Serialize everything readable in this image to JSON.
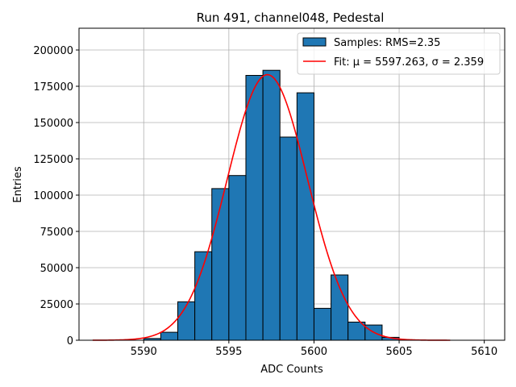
{
  "chart_data": {
    "type": "bar",
    "title": "Run 491, channel048, Pedestal",
    "xlabel": "ADC Counts",
    "ylabel": "Entries",
    "xlim": [
      5586.2,
      5611.2
    ],
    "ylim": [
      0,
      215000
    ],
    "x_ticks": [
      5590,
      5595,
      5600,
      5605,
      5610
    ],
    "y_ticks": [
      0,
      25000,
      50000,
      75000,
      100000,
      125000,
      150000,
      175000,
      200000
    ],
    "grid": true,
    "legend_position": "top-right",
    "series": [
      {
        "name": "Samples: RMS=2.35",
        "kind": "histogram",
        "color": "#1f77b4",
        "edgecolor": "#000000",
        "bin_width": 1,
        "bins": [
          {
            "x": 5590,
            "count": 1200
          },
          {
            "x": 5591,
            "count": 5500
          },
          {
            "x": 5592,
            "count": 26500
          },
          {
            "x": 5593,
            "count": 61000
          },
          {
            "x": 5594,
            "count": 104500
          },
          {
            "x": 5595,
            "count": 113500
          },
          {
            "x": 5596,
            "count": 182500
          },
          {
            "x": 5597,
            "count": 186000
          },
          {
            "x": 5598,
            "count": 140000
          },
          {
            "x": 5599,
            "count": 170500
          },
          {
            "x": 5600,
            "count": 22000
          },
          {
            "x": 5601,
            "count": 45000
          },
          {
            "x": 5602,
            "count": 12500
          },
          {
            "x": 5603,
            "count": 10500
          },
          {
            "x": 5604,
            "count": 2000
          }
        ]
      },
      {
        "name": "Fit: μ = 5597.263, σ = 2.359",
        "kind": "gaussian-fit",
        "color": "#ff0000",
        "mu": 5597.263,
        "sigma": 2.359,
        "amplitude": 183000,
        "x_range": [
          5587,
          5608
        ]
      }
    ]
  }
}
